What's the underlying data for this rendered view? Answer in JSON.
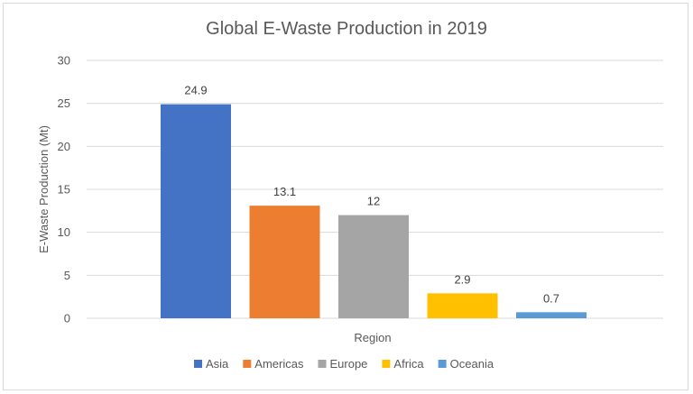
{
  "chart_data": {
    "type": "bar",
    "title": "Global E-Waste Production in 2019",
    "xlabel": "Region",
    "ylabel": "E-Waste Production (Mt)",
    "ylim": [
      0,
      30
    ],
    "yticks": [
      0,
      5,
      10,
      15,
      20,
      25,
      30
    ],
    "grid": true,
    "legend_position": "bottom",
    "categories": [
      "Asia",
      "Americas",
      "Europe",
      "Africa",
      "Oceania"
    ],
    "values": [
      24.9,
      13.1,
      12,
      2.9,
      0.7
    ],
    "colors": [
      "#4472c4",
      "#ed7d31",
      "#a5a5a5",
      "#ffc000",
      "#5b9bd5"
    ]
  }
}
